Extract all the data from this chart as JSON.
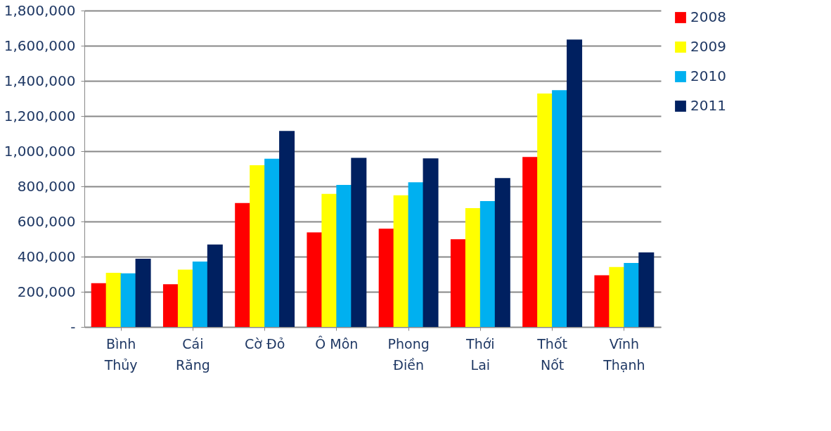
{
  "chart_data": {
    "type": "bar",
    "categories": [
      "Bình\nThủy",
      "Cái\nRăng",
      "Cờ Đỏ",
      "Ô Môn",
      "Phong\nĐiền",
      "Thới\nLai",
      "Thốt\nNốt",
      "Vĩnh\nThạnh"
    ],
    "series": [
      {
        "name": "2008",
        "color": "#ff0000",
        "values": [
          249000,
          243000,
          705000,
          538000,
          559000,
          499000,
          967000,
          294000
        ]
      },
      {
        "name": "2009",
        "color": "#ffff00",
        "values": [
          308000,
          326000,
          920000,
          757000,
          749000,
          676000,
          1328000,
          341000
        ]
      },
      {
        "name": "2010",
        "color": "#00b0f0",
        "values": [
          305000,
          372000,
          957000,
          808000,
          823000,
          716000,
          1347000,
          364000
        ]
      },
      {
        "name": "2011",
        "color": "#002060",
        "values": [
          388000,
          469000,
          1115000,
          962000,
          959000,
          847000,
          1635000,
          424000
        ]
      }
    ],
    "ylim": [
      0,
      1800000
    ],
    "yticks": [
      {
        "value": 0,
        "label": "-"
      },
      {
        "value": 200000,
        "label": "200,000"
      },
      {
        "value": 400000,
        "label": "400,000"
      },
      {
        "value": 600000,
        "label": "600,000"
      },
      {
        "value": 800000,
        "label": "800,000"
      },
      {
        "value": 1000000,
        "label": "1,000,000"
      },
      {
        "value": 1200000,
        "label": "1,200,000"
      },
      {
        "value": 1400000,
        "label": "1,400,000"
      },
      {
        "value": 1600000,
        "label": "1,600,000"
      },
      {
        "value": 1800000,
        "label": "1,800,000"
      }
    ],
    "grid": "y",
    "legend": "right"
  }
}
